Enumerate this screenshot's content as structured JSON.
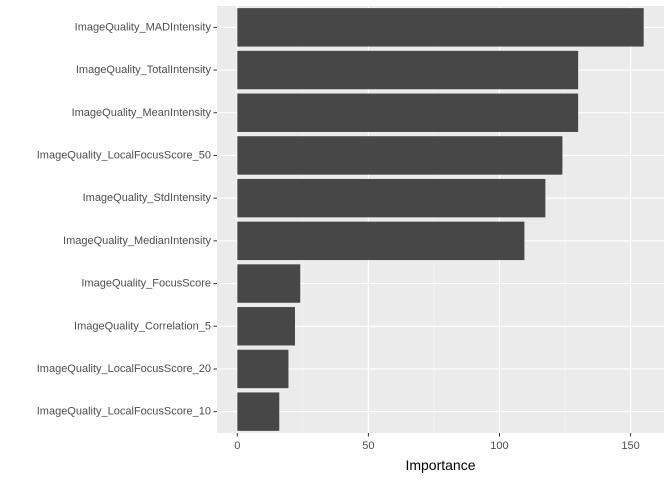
{
  "chart_data": {
    "type": "bar",
    "orientation": "horizontal",
    "categories": [
      "ImageQuality_MADIntensity",
      "ImageQuality_TotalIntensity",
      "ImageQuality_MeanIntensity",
      "ImageQuality_LocalFocusScore_50",
      "ImageQuality_StdIntensity",
      "ImageQuality_MedianIntensity",
      "ImageQuality_FocusScore",
      "ImageQuality_Correlation_5",
      "ImageQuality_LocalFocusScore_20",
      "ImageQuality_LocalFocusScore_10"
    ],
    "values": [
      155,
      130,
      130,
      124,
      117.5,
      109.5,
      24,
      22,
      19.5,
      16
    ],
    "xlabel": "Importance",
    "ylabel": "",
    "title": "",
    "xlim": [
      -7.75,
      162.75
    ],
    "xticks": [
      0,
      50,
      100,
      150
    ],
    "grid": true,
    "legend": "none",
    "colors": {
      "bar": "#474747",
      "panel_background": "#ebebeb",
      "grid_major": "#ffffff",
      "grid_minor": "#f5f5f5",
      "tick_text": "#4d4d4d",
      "axis_title": "#000000"
    }
  }
}
